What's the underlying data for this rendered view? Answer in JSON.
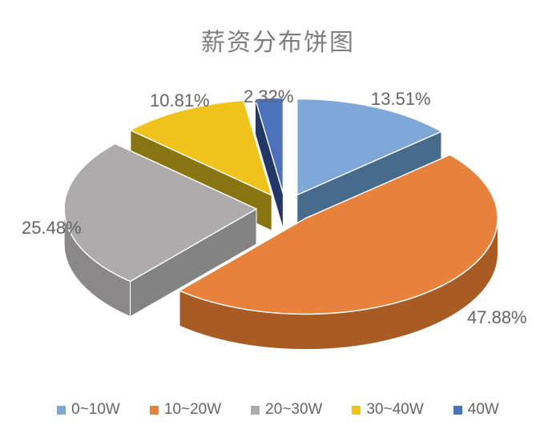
{
  "chart_data": {
    "type": "pie",
    "style": "3d-exploded-pie",
    "title": "薪资分布饼图",
    "start_angle": "top",
    "direction": "clockwise",
    "legend_position": "bottom",
    "background_color": "#ffffff",
    "title_color": "#7e7e7e",
    "label_color": "#646464",
    "slices": [
      {
        "name": "0~10W",
        "value": 13.51,
        "label": "13.51%",
        "color": "#7FA8D8",
        "side_color": "#4A7191"
      },
      {
        "name": "10~20W",
        "value": 47.88,
        "label": "47.88%",
        "color": "#E8813C",
        "side_color": "#A85C24"
      },
      {
        "name": "20~30W",
        "value": 25.48,
        "label": "25.48%",
        "color": "#ADABAB",
        "side_color": "#8A8888"
      },
      {
        "name": "30~40W",
        "value": 10.81,
        "label": "10.81%",
        "color": "#F0C31C",
        "side_color": "#8E7A13"
      },
      {
        "name": "40W",
        "value": 2.32,
        "label": "2.32%",
        "color": "#4C72BE",
        "side_color": "#23386B"
      }
    ]
  }
}
